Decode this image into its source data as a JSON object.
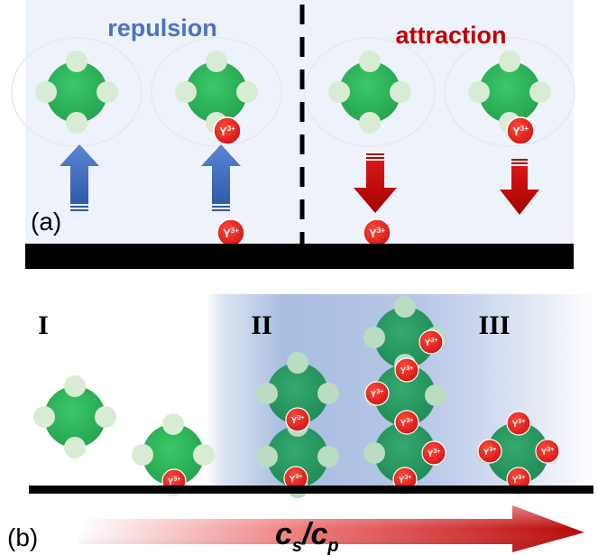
{
  "panel_a": {
    "label": "(a)",
    "left_title": "repulsion",
    "right_title": "attraction",
    "ion_label": "Y",
    "ion_charge": "3+",
    "colors": {
      "background": "#eef2fb",
      "repulsion": "#4a73c4",
      "attraction": "#c00000",
      "particle": "#2fb35a",
      "patch": "#d9ecd5",
      "ion": "#e01d1d",
      "substrate": "#000000"
    }
  },
  "panel_b": {
    "label": "(b)",
    "regions": [
      "I",
      "II",
      "III"
    ],
    "ion_label": "Y",
    "ion_charge": "3+",
    "axis_label_main": "c",
    "axis_label_sub1": "s",
    "axis_slash": "/",
    "axis_label_sub2": "p"
  }
}
